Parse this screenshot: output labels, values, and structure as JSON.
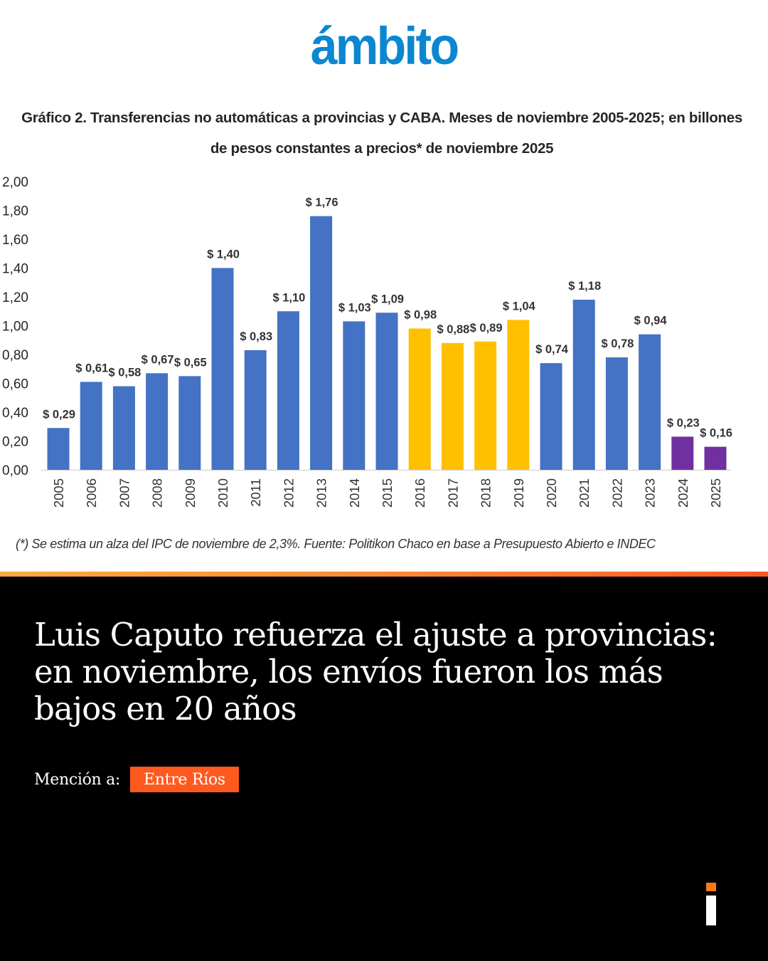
{
  "brand": {
    "name": "ámbito",
    "color": "#0a87d0"
  },
  "chart_data": {
    "type": "bar",
    "title": "Gráfico 2. Transferencias no automáticas a provincias y CABA. Meses de noviembre 2005-2025; en billones",
    "subtitle": "de pesos constantes a precios* de noviembre 2025",
    "xlabel": "",
    "ylabel": "",
    "ylim": [
      0,
      2.0
    ],
    "yticks": [
      "0,00",
      "0,20",
      "0,40",
      "0,60",
      "0,80",
      "1,00",
      "1,20",
      "1,40",
      "1,60",
      "1,80",
      "2,00"
    ],
    "ytick_values": [
      0,
      0.2,
      0.4,
      0.6,
      0.8,
      1.0,
      1.2,
      1.4,
      1.6,
      1.8,
      2.0
    ],
    "grid": false,
    "categories": [
      "2005",
      "2006",
      "2007",
      "2008",
      "2009",
      "2010",
      "2011",
      "2012",
      "2013",
      "2014",
      "2015",
      "2016",
      "2017",
      "2018",
      "2019",
      "2020",
      "2021",
      "2022",
      "2023",
      "2024",
      "2025"
    ],
    "values": [
      0.29,
      0.61,
      0.58,
      0.67,
      0.65,
      1.4,
      0.83,
      1.1,
      1.76,
      1.03,
      1.09,
      0.98,
      0.88,
      0.89,
      1.04,
      0.74,
      1.18,
      0.78,
      0.94,
      0.23,
      0.16
    ],
    "data_labels": [
      "$ 0,29",
      "$ 0,61",
      "$ 0,58",
      "$ 0,67",
      "$ 0,65",
      "$ 1,40",
      "$ 0,83",
      "$ 1,10",
      "$ 1,76",
      "$ 1,03",
      "$ 1,09",
      "$ 0,98",
      "$ 0,88",
      "$ 0,89",
      "$ 1,04",
      "$ 0,74",
      "$ 1,18",
      "$ 0,78",
      "$ 0,94",
      "$ 0,23",
      "$ 0,16"
    ],
    "bar_groups": [
      "blue",
      "blue",
      "blue",
      "blue",
      "blue",
      "blue",
      "blue",
      "blue",
      "blue",
      "blue",
      "blue",
      "yellow",
      "yellow",
      "yellow",
      "yellow",
      "blue",
      "blue",
      "blue",
      "blue",
      "purple",
      "purple"
    ],
    "colors": {
      "blue": "#4472c4",
      "yellow": "#ffc000",
      "purple": "#7030a0"
    },
    "footnote": "(*) Se estima un alza del IPC de noviembre de 2,3%. Fuente: Politikon Chaco en base a Presupuesto Abierto e INDEC"
  },
  "article": {
    "headline": "Luis Caputo refuerza el ajuste a provincias: en noviembre, los envíos fueron los más bajos en 20 años",
    "mention_label": "Mención a:",
    "mention_tag": "Entre Ríos",
    "accent_color": "#fe5a1f"
  }
}
